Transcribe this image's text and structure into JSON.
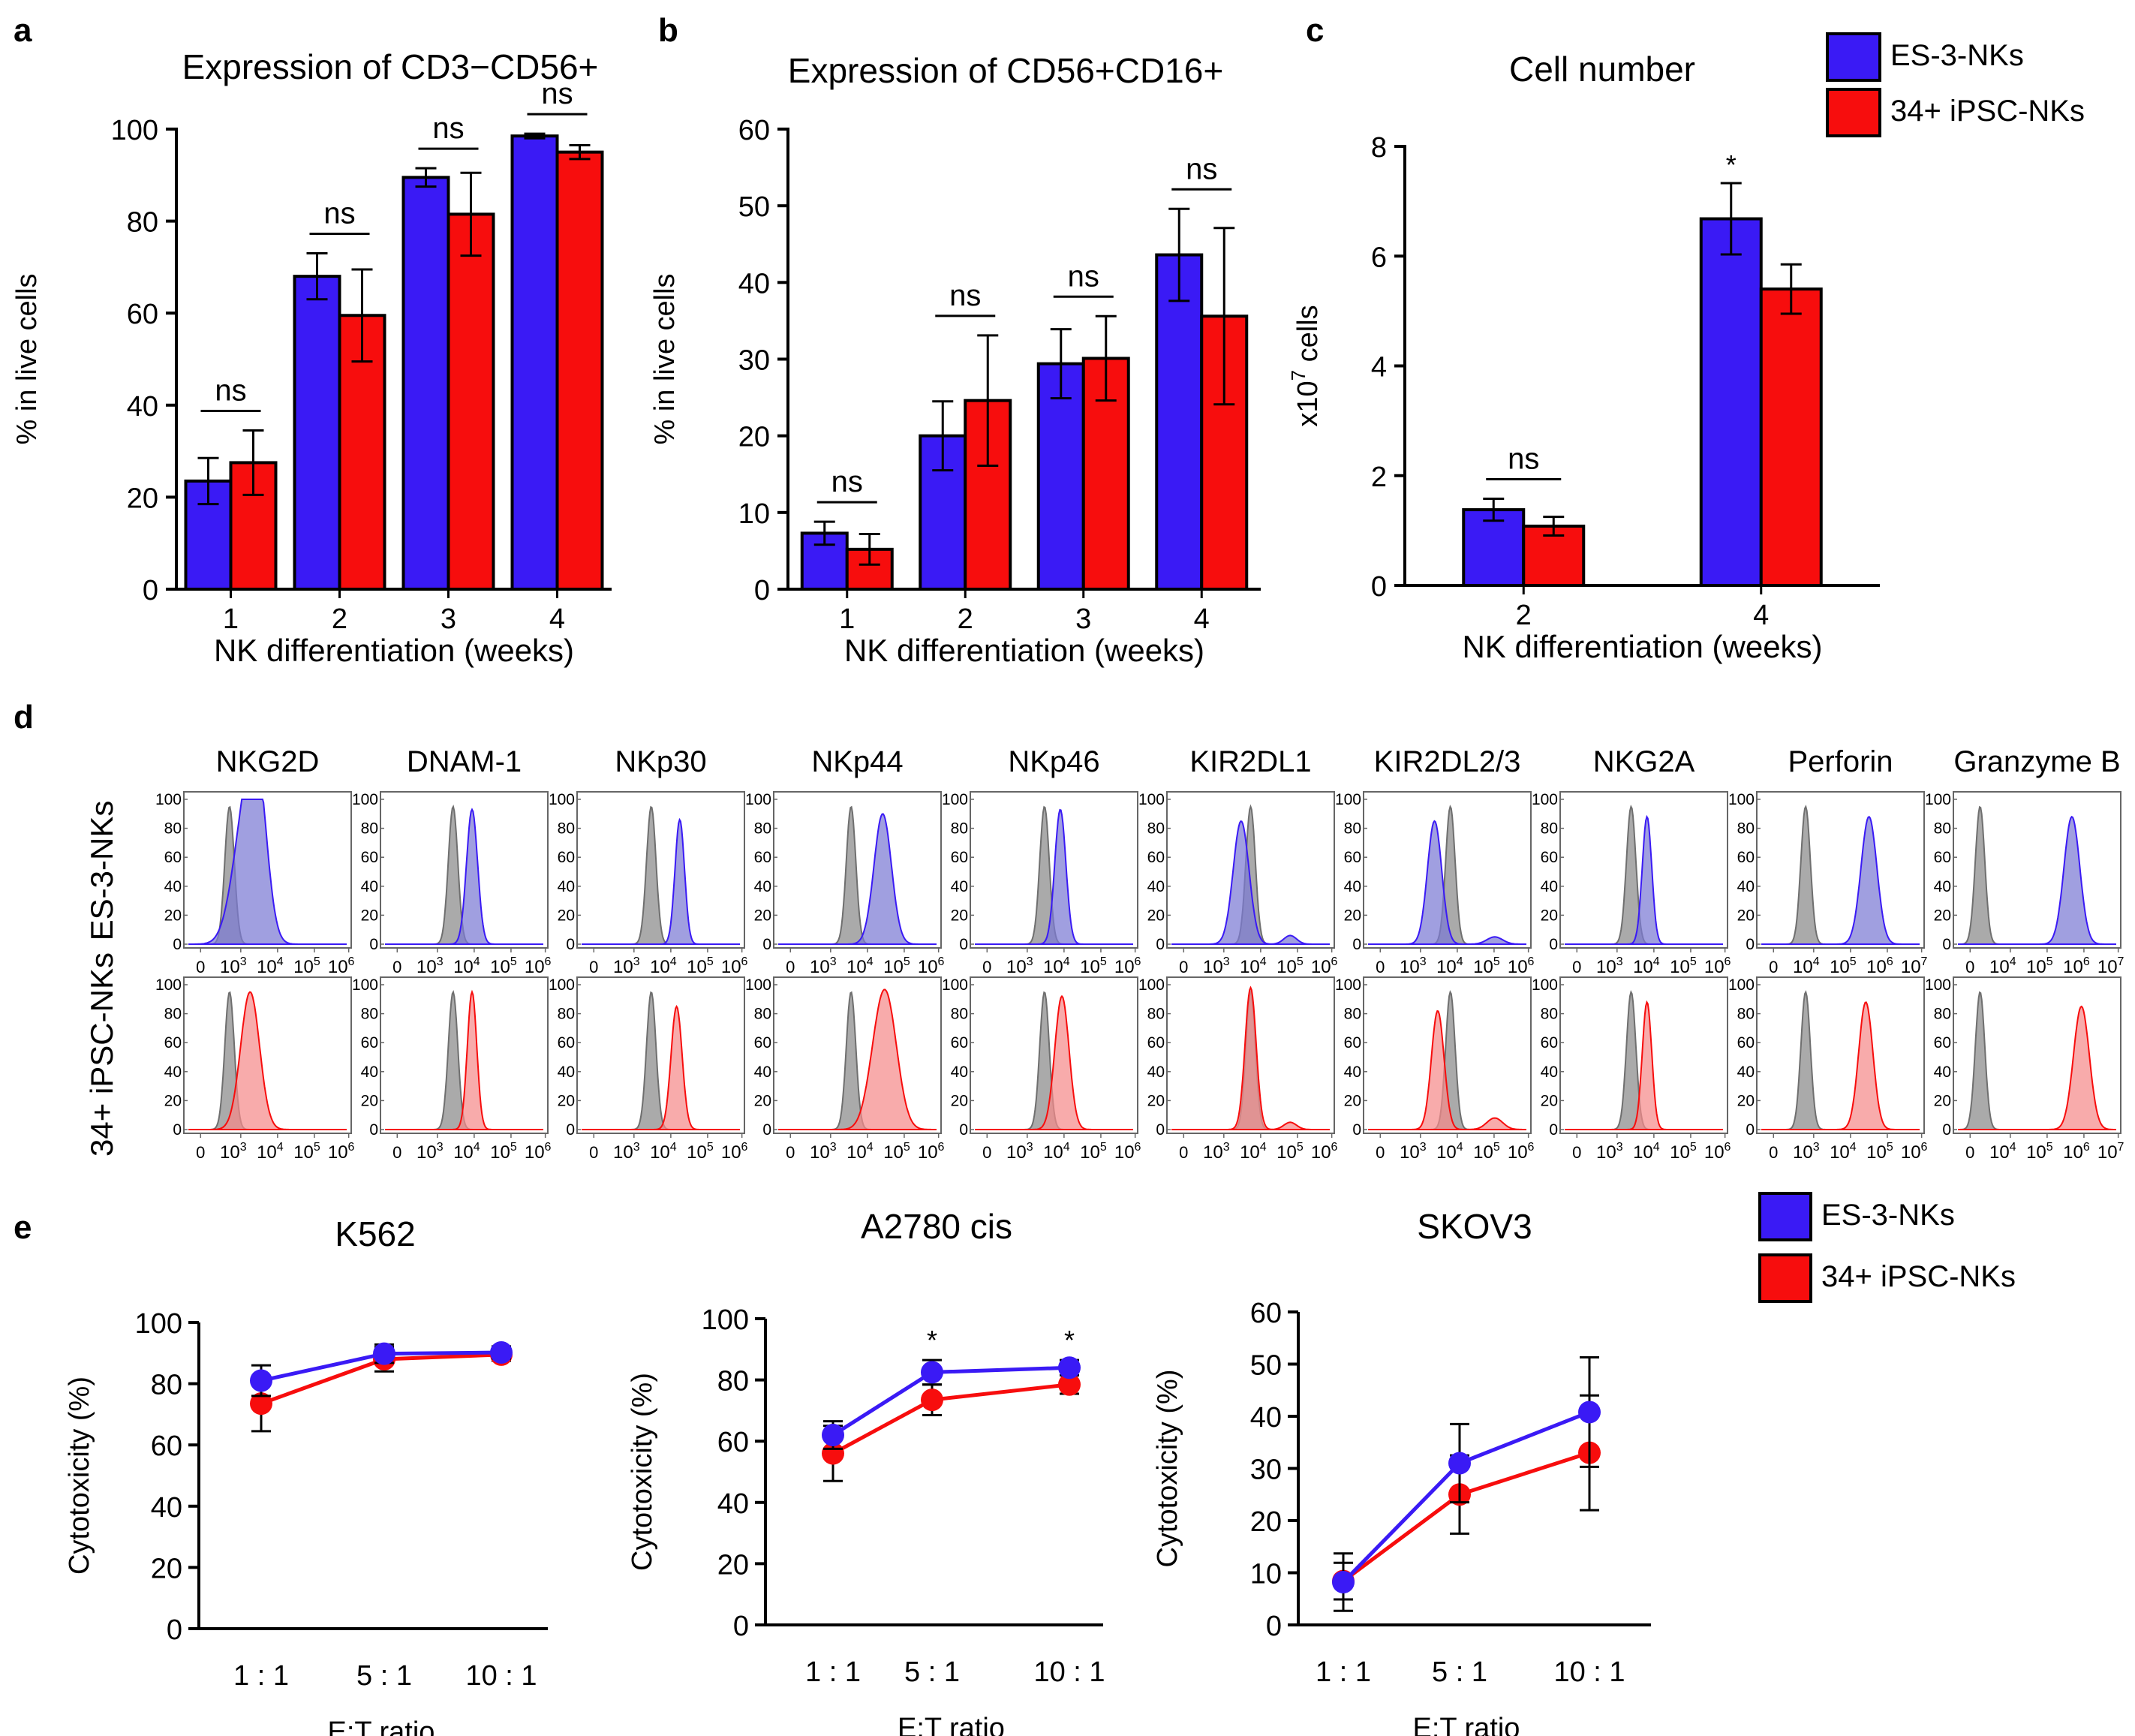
{
  "colors": {
    "es": "#3a1af5",
    "ips": "#f70d0d",
    "gray": "#8e8e8e",
    "es_fill": "#7b7ad4",
    "ips_fill": "#f58a8a"
  },
  "legend": {
    "es": "ES-3-NKs",
    "ips": "34+ iPSC-NKs"
  },
  "panel_letters": [
    "a",
    "b",
    "c",
    "d",
    "e"
  ],
  "chart_data": [
    {
      "id": "a",
      "type": "bar",
      "title": "Expression of CD3−CD56+",
      "xlabel": "NK differentiation (weeks)",
      "ylabel": "% in live cells",
      "categories": [
        "1",
        "2",
        "3",
        "4"
      ],
      "ylim": [
        0,
        100
      ],
      "yticks": [
        "0",
        "20",
        "40",
        "60",
        "80",
        "100"
      ],
      "series": [
        {
          "name": "ES-3-NKs",
          "values": [
            23.5,
            68,
            89.5,
            98.5
          ],
          "errors": [
            5,
            5,
            2,
            0.5
          ]
        },
        {
          "name": "34+ iPSC-NKs",
          "values": [
            27.5,
            59.5,
            81.5,
            95
          ],
          "errors": [
            7,
            10,
            9,
            1.5
          ]
        }
      ],
      "annotations": [
        "ns",
        "ns",
        "ns",
        "ns"
      ]
    },
    {
      "id": "b",
      "type": "bar",
      "title": "Expression of CD56+CD16+",
      "xlabel": "NK differentiation (weeks)",
      "ylabel": "% in live cells",
      "categories": [
        "1",
        "2",
        "3",
        "4"
      ],
      "ylim": [
        0,
        60
      ],
      "yticks": [
        "0",
        "10",
        "20",
        "30",
        "40",
        "50",
        "60"
      ],
      "series": [
        {
          "name": "ES-3-NKs",
          "values": [
            7.3,
            20,
            29.4,
            43.6
          ],
          "errors": [
            1.5,
            4.5,
            4.5,
            6
          ]
        },
        {
          "name": "34+ iPSC-NKs",
          "values": [
            5.2,
            24.6,
            30.1,
            35.6
          ],
          "errors": [
            2,
            8.5,
            5.5,
            11.5
          ]
        }
      ],
      "annotations": [
        "ns",
        "ns",
        "ns",
        "ns"
      ]
    },
    {
      "id": "c",
      "type": "bar",
      "title": "Cell number",
      "xlabel": "NK differentiation (weeks)",
      "ylabel": "x10",
      "ylabel_sup": "7",
      "ylabel_suffix": " cells",
      "categories": [
        "2",
        "4"
      ],
      "ylim": [
        0,
        8
      ],
      "yticks": [
        "0",
        "2",
        "4",
        "6",
        "8"
      ],
      "series": [
        {
          "name": "ES-3-NKs",
          "values": [
            1.38,
            6.68
          ],
          "errors": [
            0.2,
            0.65
          ]
        },
        {
          "name": "34+ iPSC-NKs",
          "values": [
            1.08,
            5.4
          ],
          "errors": [
            0.17,
            0.45
          ]
        }
      ],
      "annotations": [
        "ns",
        "*"
      ]
    },
    {
      "id": "d",
      "type": "histogram",
      "row_labels": [
        "ES-3-NKs",
        "34+ iPSC-NKs"
      ],
      "markers": [
        "NKG2D",
        "DNAM-1",
        "NKp30",
        "NKp44",
        "NKp46",
        "KIR2DL1",
        "KIR2DL2/3",
        "NKG2A",
        "Perforin",
        "Granzyme B"
      ],
      "yticks": [
        "0",
        "20",
        "40",
        "60",
        "80",
        "100"
      ],
      "xticks_6": [
        "0",
        "10³",
        "10⁴",
        "10⁵",
        "10⁶"
      ],
      "xticks_7": [
        "0",
        "10⁴",
        "10⁵",
        "10⁶",
        "10⁷"
      ],
      "tick_labels": {
        "base": "10",
        "exps6": [
          "3",
          "4",
          "5",
          "6"
        ],
        "exps7": [
          "4",
          "5",
          "6",
          "7"
        ]
      },
      "panels": [
        {
          "iso": 0.26,
          "es": [
            [
              0.36,
              0.08,
              0.85
            ],
            [
              0.44,
              0.06,
              0.8
            ]
          ],
          "ips": [
            [
              0.39,
              0.06,
              0.95
            ]
          ]
        },
        {
          "iso": 0.43,
          "es": [
            [
              0.55,
              0.035,
              0.93
            ]
          ],
          "ips": [
            [
              0.55,
              0.03,
              0.95
            ]
          ]
        },
        {
          "iso": 0.44,
          "es": [
            [
              0.62,
              0.03,
              0.86
            ]
          ],
          "ips": [
            [
              0.6,
              0.035,
              0.85
            ]
          ]
        },
        {
          "iso": 0.46,
          "es": [
            [
              0.66,
              0.055,
              0.9
            ]
          ],
          "ips": [
            [
              0.68,
              0.07,
              0.9
            ],
            [
              0.6,
              0.06,
              0.15
            ]
          ]
        },
        {
          "iso": 0.44,
          "es": [
            [
              0.54,
              0.035,
              0.93
            ]
          ],
          "ips": [
            [
              0.55,
              0.045,
              0.92
            ]
          ]
        },
        {
          "iso": 0.5,
          "es": [
            [
              0.44,
              0.05,
              0.85
            ],
            [
              0.75,
              0.04,
              0.06
            ]
          ],
          "ips": [
            [
              0.5,
              0.035,
              0.98
            ],
            [
              0.75,
              0.04,
              0.05
            ]
          ]
        },
        {
          "iso": 0.52,
          "es": [
            [
              0.42,
              0.045,
              0.85
            ],
            [
              0.8,
              0.05,
              0.05
            ]
          ],
          "ips": [
            [
              0.44,
              0.04,
              0.82
            ],
            [
              0.8,
              0.05,
              0.08
            ]
          ]
        },
        {
          "iso": 0.42,
          "es": [
            [
              0.52,
              0.03,
              0.88
            ]
          ],
          "ips": [
            [
              0.52,
              0.03,
              0.88
            ]
          ]
        },
        {
          "iso": 0.28,
          "es": [
            [
              0.68,
              0.05,
              0.88
            ]
          ],
          "ips": [
            [
              0.66,
              0.045,
              0.88
            ]
          ]
        },
        {
          "iso": 0.14,
          "es": [
            [
              0.72,
              0.05,
              0.88
            ]
          ],
          "ips": [
            [
              0.78,
              0.05,
              0.85
            ]
          ]
        }
      ]
    },
    {
      "id": "e1",
      "type": "line",
      "title": "K562",
      "xlabel": "E:T ratio",
      "ylabel": "Cytotoxicity (%)",
      "categories": [
        "1 : 1",
        "5 : 1",
        "10 : 1"
      ],
      "ylim": [
        0,
        100
      ],
      "yticks": [
        "0",
        "20",
        "40",
        "60",
        "80",
        "100"
      ],
      "series": [
        {
          "name": "ES-3-NKs",
          "values": [
            81,
            89.8,
            90.2
          ],
          "errors": [
            5,
            3,
            2
          ]
        },
        {
          "name": "34+ iPSC-NKs",
          "values": [
            73.5,
            88,
            89.5
          ],
          "errors": [
            9,
            4,
            2
          ]
        }
      ],
      "annotations": [
        "",
        "",
        ""
      ]
    },
    {
      "id": "e2",
      "type": "line",
      "title": "A2780 cis",
      "xlabel": "E:T ratio",
      "ylabel": "Cytotoxicity (%)",
      "categories": [
        "1 : 1",
        "5 : 1",
        "10 : 1"
      ],
      "ylim": [
        0,
        100
      ],
      "yticks": [
        "0",
        "20",
        "40",
        "60",
        "80",
        "100"
      ],
      "series": [
        {
          "name": "ES-3-NKs",
          "values": [
            62,
            82.5,
            84
          ],
          "errors": [
            4.5,
            4,
            2.5
          ]
        },
        {
          "name": "34+ iPSC-NKs",
          "values": [
            56,
            73.5,
            78.5
          ],
          "errors": [
            9,
            5,
            3
          ]
        }
      ],
      "annotations": [
        "",
        "*",
        "*"
      ]
    },
    {
      "id": "e3",
      "type": "line",
      "title": "SKOV3",
      "xlabel": "E:T ratio",
      "ylabel": "Cytotoxicity (%)",
      "categories": [
        "1 : 1",
        "5 : 1",
        "10 : 1"
      ],
      "ylim": [
        0,
        60
      ],
      "yticks": [
        "0",
        "10",
        "20",
        "30",
        "40",
        "50",
        "60"
      ],
      "series": [
        {
          "name": "ES-3-NKs",
          "values": [
            8.2,
            31,
            40.8
          ],
          "errors": [
            5.5,
            7.5,
            10.5
          ]
        },
        {
          "name": "34+ iPSC-NKs",
          "values": [
            8.4,
            25,
            33
          ],
          "errors": [
            3.5,
            7.5,
            11
          ]
        }
      ],
      "annotations": [
        "",
        "",
        ""
      ]
    }
  ]
}
